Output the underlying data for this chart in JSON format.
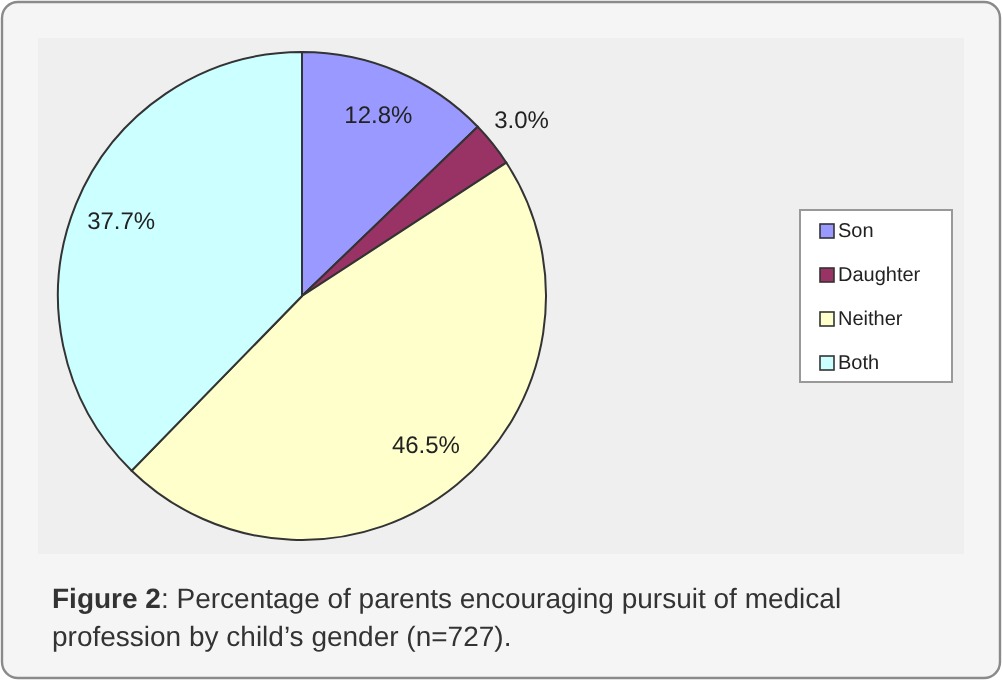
{
  "chart_data": {
    "type": "pie",
    "categories": [
      "Son",
      "Daughter",
      "Neither",
      "Both"
    ],
    "values": [
      12.8,
      3.0,
      46.5,
      37.7
    ],
    "colors": [
      "#9999ff",
      "#993366",
      "#ffffcc",
      "#ccffff"
    ],
    "value_labels": [
      "12.8%",
      "3.0%",
      "46.5%",
      "37.7%"
    ],
    "legend": "right",
    "annotations": [
      "Figure 2: Percentage of parents encouraging pursuit of medical profession by child’s gender (n=727)."
    ]
  }
}
